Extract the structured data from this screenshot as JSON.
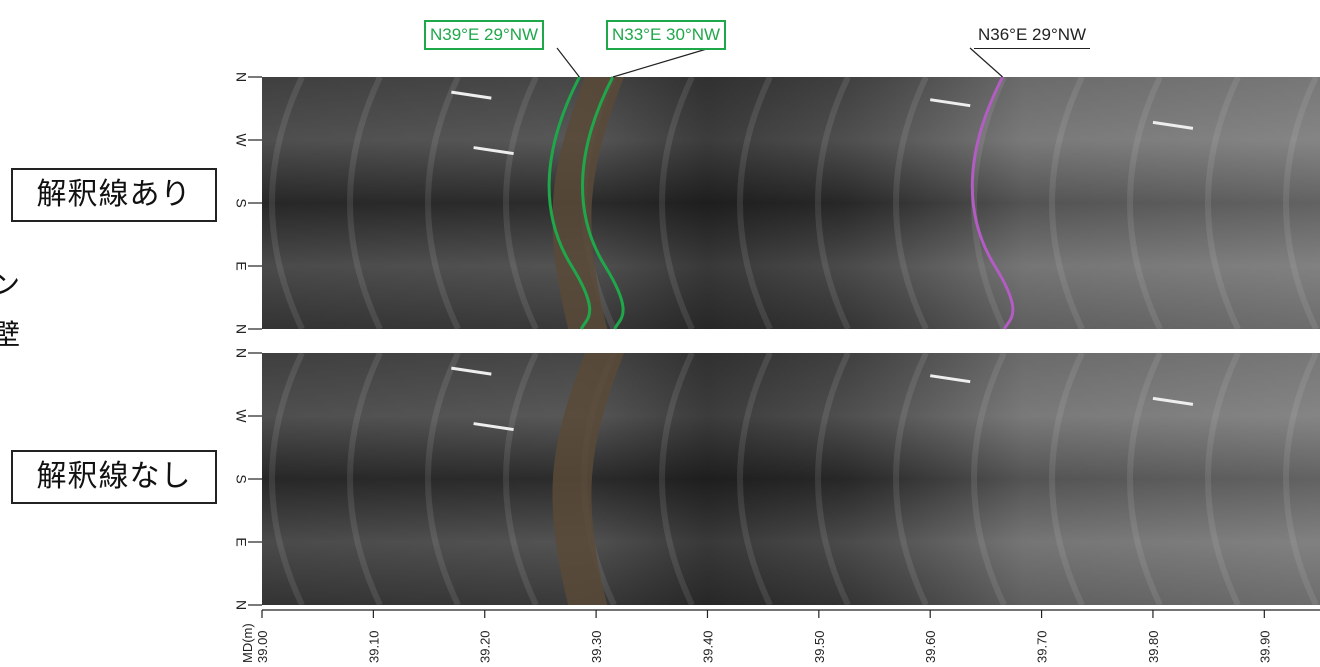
{
  "labels": {
    "with_lines": "解釈線あり",
    "without_lines": "解釈線なし",
    "side_fragment_1": "ン",
    "side_fragment_2": "壁"
  },
  "orientation_ticks": [
    "N",
    "W",
    "S",
    "E",
    "N"
  ],
  "depth_axis": {
    "title": "MD(m)",
    "ticks": [
      "39.00",
      "39.10",
      "39.20",
      "39.30",
      "39.40",
      "39.50",
      "39.60",
      "39.70",
      "39.80",
      "39.90"
    ],
    "range": [
      39.0,
      39.95
    ]
  },
  "annotations": [
    {
      "text": "N39°E 29°NW",
      "color": "#1ea84a",
      "boxed": true,
      "depth": 39.285
    },
    {
      "text": "N33°E 30°NW",
      "color": "#1ea84a",
      "boxed": true,
      "depth": 39.315
    },
    {
      "text": "N36°E 29°NW",
      "color": "#b25cc4",
      "boxed": false,
      "depth": 39.665
    }
  ],
  "colors": {
    "panel_dark": "#3a3a3a",
    "panel_light": "#8a8a8a",
    "green": "#1ea84a",
    "purple": "#b25cc4"
  }
}
